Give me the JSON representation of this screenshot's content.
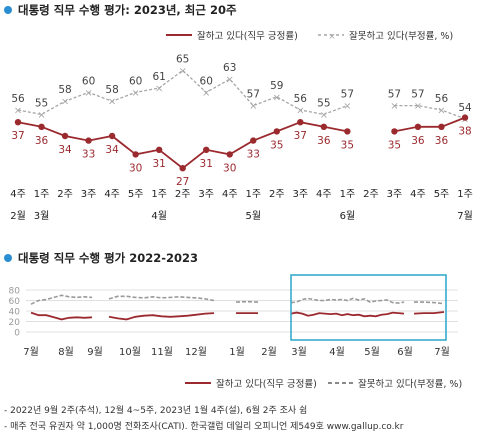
{
  "top": {
    "title": "대통령 직무 수행 평가: 2023년, 최근 20주",
    "legend_positive": "잘하고 있다(직무 긍정률)",
    "legend_negative": "잘못하고 있다(부정률, %)"
  },
  "bottom": {
    "title": "대통령 직무 수행 평가 2022-2023",
    "legend_positive": "잘하고 있다(직무 긍정률)",
    "legend_negative": "잘못하고 있다(부정률, %)"
  },
  "footnotes": [
    "- 2022년 9월 2주(추석), 12월 4~5주, 2023년 1월 4주(설), 6월 2주 조사 쉼",
    "- 매주 전국 유권자 약 1,000명 전화조사(CATI). 한국갤럽 데일리 오피니언 제549호 www.gallup.co.kr"
  ],
  "colors": {
    "positive": "#9b2a2f",
    "negative": "#a6a6a6",
    "highlight_box": "#2aa6c8",
    "title_dot": "#2a8fd0"
  },
  "chart_data": [
    {
      "type": "line",
      "title": "대통령 직무 수행 평가: 2023년, 최근 20주",
      "week_labels": [
        "4주",
        "1주",
        "2주",
        "3주",
        "4주",
        "5주",
        "1주",
        "2주",
        "3주",
        "4주",
        "1주",
        "2주",
        "3주",
        "4주",
        "1주",
        "2주",
        "3주",
        "4주",
        "5주",
        "1주"
      ],
      "month_labels": [
        {
          "label": "2월",
          "week_index": 0
        },
        {
          "label": "3월",
          "week_index": 1
        },
        {
          "label": "4월",
          "week_index": 6
        },
        {
          "label": "5월",
          "week_index": 10
        },
        {
          "label": "6월",
          "week_index": 14
        },
        {
          "label": "7월",
          "week_index": 19
        }
      ],
      "series": [
        {
          "name": "잘하고 있다(직무 긍정률)",
          "values": [
            37,
            36,
            34,
            33,
            34,
            30,
            31,
            27,
            31,
            30,
            33,
            35,
            37,
            36,
            35,
            null,
            35,
            36,
            36,
            38
          ]
        },
        {
          "name": "잘못하고 있다(부정률, %)",
          "values": [
            56,
            55,
            58,
            60,
            58,
            60,
            61,
            65,
            60,
            63,
            57,
            59,
            56,
            55,
            57,
            null,
            57,
            57,
            56,
            54
          ]
        }
      ],
      "legend_position": "top"
    },
    {
      "type": "line",
      "title": "대통령 직무 수행 평가 2022-2023",
      "y_ticks": [
        0,
        20,
        40,
        60,
        80
      ],
      "ylim": [
        0,
        80
      ],
      "month_labels": [
        "7월",
        "8월",
        "9월",
        "10월",
        "11월",
        "12월",
        "1월",
        "2월",
        "3월",
        "4월",
        "5월",
        "6월",
        "7월"
      ],
      "series": [
        {
          "name": "잘하고 있다(직무 긍정률)",
          "segments": [
            [
              37,
              32,
              32,
              28,
              24,
              27,
              28,
              27,
              28
            ],
            [
              29,
              26,
              24,
              29,
              31,
              32,
              30,
              29,
              30,
              31,
              33,
              35,
              36
            ],
            [
              36,
              36,
              36
            ],
            [
              35,
              37,
              35,
              31,
              33,
              36,
              35,
              34,
              35,
              32,
              34,
              32,
              33,
              30,
              31,
              30,
              33,
              34,
              37,
              36,
              35
            ],
            [
              35,
              36,
              36,
              38
            ]
          ]
        },
        {
          "name": "잘못하고 있다(부정률, %)",
          "segments": [
            [
              53,
              60,
              62,
              66,
              70,
              67,
              66,
              67,
              66
            ],
            [
              63,
              68,
              68,
              66,
              65,
              67,
              65,
              66,
              67,
              66,
              65,
              63,
              60
            ],
            [
              57,
              58,
              57
            ],
            [
              56,
              57,
              62,
              64,
              62,
              60,
              60,
              62,
              61,
              62,
              60,
              64,
              61,
              63,
              57,
              59,
              60,
              61,
              56,
              55,
              57
            ],
            [
              57,
              57,
              56,
              54
            ]
          ]
        }
      ],
      "legend_position": "bottom"
    }
  ]
}
